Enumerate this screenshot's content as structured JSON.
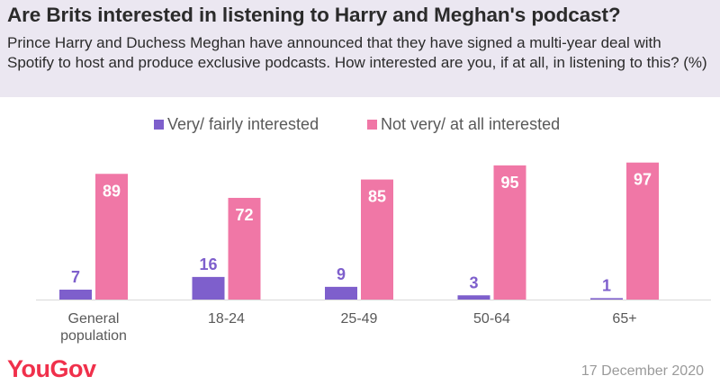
{
  "header": {
    "title": "Are Brits interested in listening to Harry and Meghan's podcast?",
    "subtitle": "Prince Harry and Duchess Meghan have announced that they have signed a multi-year deal with Spotify to host and produce exclusive podcasts. How interested are you, if at all, in listening to this? (%)"
  },
  "legend": {
    "items": [
      {
        "label": "Very/ fairly interested",
        "color": "#7e5fcc"
      },
      {
        "label": "Not very/ at all interested",
        "color": "#f077a6"
      }
    ]
  },
  "footer": {
    "logo_text": "YouGov",
    "date": "17 December 2020"
  },
  "colors": {
    "series_1": "#7e5fcc",
    "series_2": "#f077a6",
    "axis": "#d9d9d9",
    "label_text": "#595959"
  },
  "chart_data": {
    "type": "bar",
    "categories": [
      "General population",
      "18-24",
      "25-49",
      "50-64",
      "65+"
    ],
    "series": [
      {
        "name": "Very/ fairly interested",
        "values": [
          7,
          16,
          9,
          3,
          1
        ]
      },
      {
        "name": "Not very/ at all interested",
        "values": [
          89,
          72,
          85,
          95,
          97
        ]
      }
    ],
    "ylim": [
      0,
      100
    ],
    "grid": false,
    "legend_position": "top",
    "data_labels": true
  }
}
